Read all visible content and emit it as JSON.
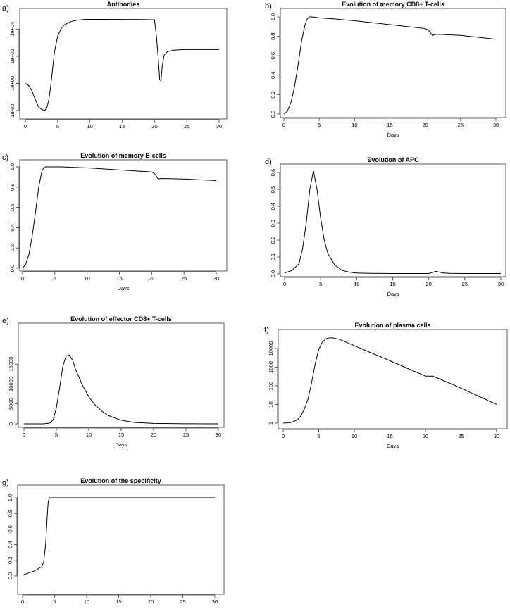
{
  "chart_data": [
    {
      "id": "a",
      "panel_label": "a)",
      "type": "line",
      "title": "Antibodies",
      "xlabel": "",
      "ylabel": "",
      "y_scale": "log",
      "xlim": [
        0,
        30
      ],
      "ylim": [
        0.01,
        100000
      ],
      "x_ticks": [
        0,
        5,
        10,
        15,
        20,
        25,
        30
      ],
      "y_ticks": [
        0.01,
        1,
        100,
        10000
      ],
      "y_tick_labels": [
        "1e-02",
        "1e+00",
        "1e+02",
        "1e+04"
      ],
      "x": [
        0,
        0.5,
        1,
        1.5,
        2,
        2.5,
        3,
        3.3,
        3.6,
        3.9,
        4.2,
        4.5,
        5,
        5.5,
        6,
        7,
        8,
        9,
        10,
        12,
        15,
        18,
        20,
        20.3,
        20.6,
        20.8,
        21,
        21.2,
        21.5,
        22,
        23,
        24,
        25,
        27,
        30
      ],
      "y": [
        1,
        0.7,
        0.3,
        0.07,
        0.02,
        0.012,
        0.01,
        0.015,
        0.05,
        0.5,
        10,
        200,
        3000,
        10000,
        20000,
        35000,
        45000,
        50000,
        52000,
        52000,
        51000,
        50000,
        48000,
        3000,
        50,
        2,
        1.5,
        20,
        120,
        220,
        280,
        300,
        310,
        310,
        310
      ]
    },
    {
      "id": "b",
      "panel_label": "b)",
      "type": "line",
      "title": "Evolution of memory CD8+ T-cells",
      "xlabel": "Days",
      "ylabel": "",
      "xlim": [
        0,
        30
      ],
      "ylim": [
        0,
        1
      ],
      "x_ticks": [
        0,
        5,
        10,
        15,
        20,
        25,
        30
      ],
      "y_ticks": [
        0,
        0.2,
        0.4,
        0.6,
        0.8,
        1
      ],
      "y_tick_labels": [
        "0.0",
        "0.2",
        "0.4",
        "0.6",
        "0.8",
        "1.0"
      ],
      "x": [
        0,
        0.5,
        1,
        1.5,
        2,
        2.5,
        3,
        3.3,
        3.6,
        4,
        5,
        7,
        10,
        15,
        20,
        20.5,
        21,
        21.5,
        22,
        25,
        30
      ],
      "y": [
        0,
        0.03,
        0.12,
        0.28,
        0.5,
        0.75,
        0.92,
        0.98,
        1,
        1,
        0.99,
        0.98,
        0.96,
        0.92,
        0.88,
        0.86,
        0.81,
        0.82,
        0.82,
        0.81,
        0.77
      ]
    },
    {
      "id": "c",
      "panel_label": "c)",
      "type": "line",
      "title": "Evolution of memory B-cells",
      "xlabel": "Days",
      "ylabel": "",
      "xlim": [
        0,
        30
      ],
      "ylim": [
        0,
        1
      ],
      "x_ticks": [
        0,
        5,
        10,
        15,
        20,
        25,
        30
      ],
      "y_ticks": [
        0,
        0.2,
        0.4,
        0.6,
        0.8,
        1
      ],
      "y_tick_labels": [
        "0.0",
        "0.2",
        "0.4",
        "0.6",
        "0.8",
        "1.0"
      ],
      "x": [
        0,
        0.5,
        1,
        1.5,
        2,
        2.5,
        3,
        3.3,
        3.6,
        4,
        6,
        10,
        15,
        20,
        20.5,
        21,
        21.5,
        25,
        30
      ],
      "y": [
        0,
        0.04,
        0.14,
        0.32,
        0.55,
        0.8,
        0.96,
        0.99,
        1,
        1,
        1,
        0.99,
        0.97,
        0.95,
        0.93,
        0.88,
        0.885,
        0.88,
        0.865
      ]
    },
    {
      "id": "d",
      "panel_label": "d)",
      "type": "line",
      "title": "Evolution of APC",
      "xlabel": "Days",
      "ylabel": "",
      "xlim": [
        0,
        30
      ],
      "ylim": [
        0,
        0.6
      ],
      "x_ticks": [
        0,
        5,
        10,
        15,
        20,
        25,
        30
      ],
      "y_ticks": [
        0,
        0.1,
        0.2,
        0.3,
        0.4,
        0.5,
        0.6
      ],
      "y_tick_labels": [
        "0.0",
        "0.1",
        "0.2",
        "0.3",
        "0.4",
        "0.5",
        "0.6"
      ],
      "x": [
        0,
        1,
        2,
        2.5,
        3,
        3.5,
        4,
        4.5,
        5,
        5.5,
        6,
        7,
        8,
        9,
        10,
        12,
        15,
        20,
        20.5,
        21,
        21.5,
        22,
        23,
        25,
        30
      ],
      "y": [
        0.005,
        0.02,
        0.06,
        0.15,
        0.3,
        0.5,
        0.61,
        0.5,
        0.33,
        0.2,
        0.12,
        0.05,
        0.02,
        0.01,
        0.005,
        0.003,
        0.002,
        0.002,
        0.008,
        0.015,
        0.01,
        0.005,
        0.003,
        0.002,
        0.002
      ]
    },
    {
      "id": "e",
      "panel_label": "e)",
      "type": "line",
      "title": "Evolution of effector CD8+ T-cells",
      "xlabel": "Days",
      "ylabel": "",
      "xlim": [
        0,
        30
      ],
      "ylim": [
        0,
        17500
      ],
      "x_ticks": [
        0,
        5,
        10,
        15,
        20,
        25,
        30
      ],
      "y_ticks": [
        0,
        5000,
        10000,
        15000
      ],
      "y_tick_labels": [
        "0",
        "5000",
        "10000",
        "15000"
      ],
      "x": [
        0,
        2,
        3,
        4,
        4.5,
        5,
        5.5,
        6,
        6.5,
        7,
        7.5,
        8,
        9,
        10,
        11,
        12,
        13,
        15,
        17,
        20,
        25,
        30
      ],
      "y": [
        0,
        0,
        10,
        200,
        1000,
        4000,
        9000,
        14500,
        17000,
        17300,
        16000,
        13500,
        9800,
        6800,
        4700,
        3200,
        2100,
        900,
        350,
        100,
        20,
        0
      ]
    },
    {
      "id": "f",
      "panel_label": "f)",
      "type": "line",
      "title": "Evolution of plasma cells",
      "xlabel": "Days",
      "ylabel": "",
      "y_scale": "log",
      "xlim": [
        0,
        30
      ],
      "ylim": [
        1,
        40000
      ],
      "x_ticks": [
        0,
        5,
        10,
        15,
        20,
        25,
        30
      ],
      "y_ticks": [
        1,
        10,
        100,
        1000,
        10000
      ],
      "y_tick_labels": [
        "1",
        "10",
        "100",
        "1000",
        "10000"
      ],
      "x": [
        0,
        1,
        2,
        2.5,
        3,
        3.5,
        4,
        4.5,
        5,
        5.5,
        6,
        6.5,
        7,
        8,
        10,
        15,
        20,
        21,
        21.5,
        25,
        30
      ],
      "y": [
        1,
        1.05,
        1.5,
        2.5,
        6,
        20,
        150,
        1500,
        9000,
        22000,
        33000,
        37000,
        37000,
        30000,
        14000,
        2200,
        330,
        330,
        280,
        75,
        10
      ]
    },
    {
      "id": "g",
      "panel_label": "g)",
      "type": "line",
      "title": "Evolution of the specificity",
      "xlabel": "Days",
      "ylabel": "",
      "xlim": [
        0,
        30
      ],
      "ylim": [
        0,
        1
      ],
      "x_ticks": [
        0,
        5,
        10,
        15,
        20,
        25,
        30
      ],
      "y_ticks": [
        0,
        0.2,
        0.4,
        0.6,
        0.8,
        1
      ],
      "y_tick_labels": [
        "0.0",
        "0.2",
        "0.4",
        "0.6",
        "0.8",
        "1.0"
      ],
      "x": [
        0,
        1,
        2,
        3,
        3.3,
        3.6,
        3.8,
        4,
        4.2,
        6,
        10,
        20,
        30
      ],
      "y": [
        0.01,
        0.04,
        0.07,
        0.12,
        0.18,
        0.4,
        0.7,
        0.95,
        1,
        1,
        1,
        1,
        1
      ]
    }
  ]
}
